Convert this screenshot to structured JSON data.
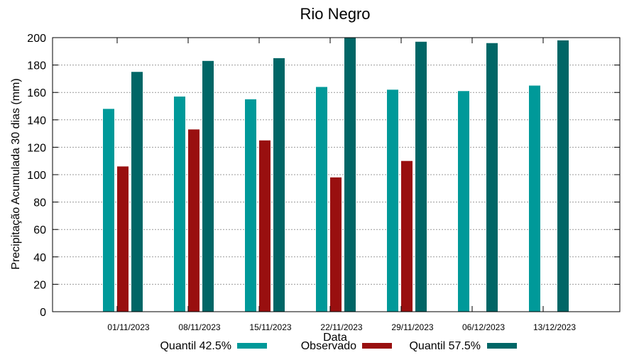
{
  "chart_data": {
    "type": "bar",
    "title": "Rio Negro",
    "xlabel": "Data",
    "ylabel": "Precipitação Acumulada 30 dias (mm)",
    "ylim": [
      0,
      200
    ],
    "yticks": [
      0,
      20,
      40,
      60,
      80,
      100,
      120,
      140,
      160,
      180,
      200
    ],
    "grid": true,
    "legend_position": "bottom",
    "categories": [
      "01/11/2023",
      "08/11/2023",
      "15/11/2023",
      "22/11/2023",
      "29/11/2023",
      "06/12/2023",
      "13/12/2023"
    ],
    "series": [
      {
        "name": "Quantil 42.5%",
        "color": "#009999",
        "values": [
          148,
          157,
          155,
          164,
          162,
          161,
          165
        ]
      },
      {
        "name": "Observado",
        "color": "#990f0f",
        "values": [
          106,
          133,
          125,
          98,
          110,
          null,
          null
        ]
      },
      {
        "name": "Quantil 57.5%",
        "color": "#006666",
        "values": [
          175,
          183,
          185,
          200,
          197,
          196,
          198
        ]
      }
    ]
  }
}
